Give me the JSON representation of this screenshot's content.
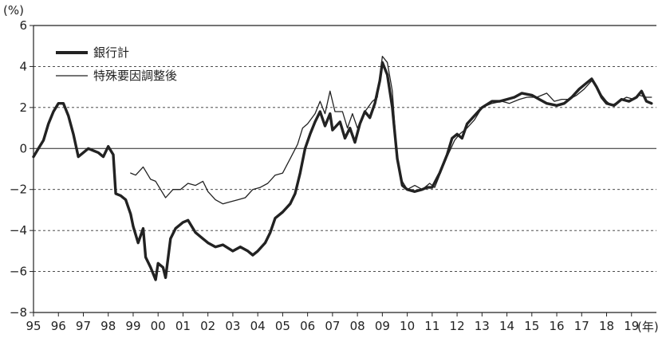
{
  "chart_data": {
    "type": "line",
    "y_unit_label": "(%)",
    "x_unit_label": "(年)",
    "ylim": [
      -8,
      6
    ],
    "y_ticks": [
      6,
      4,
      2,
      0,
      -2,
      -4,
      -6,
      -8
    ],
    "y_tick_labels": [
      "6",
      "4",
      "2",
      "0",
      "−2",
      "−4",
      "−6",
      "−8"
    ],
    "x_ticks": [
      1995,
      1996,
      1997,
      1998,
      1999,
      2000,
      2001,
      2002,
      2003,
      2004,
      2005,
      2006,
      2007,
      2008,
      2009,
      2010,
      2011,
      2012,
      2013,
      2014,
      2015,
      2016,
      2017,
      2018,
      2019
    ],
    "x_tick_labels": [
      "95",
      "96",
      "97",
      "98",
      "99",
      "00",
      "01",
      "02",
      "03",
      "04",
      "05",
      "06",
      "07",
      "08",
      "09",
      "10",
      "11",
      "12",
      "13",
      "14",
      "15",
      "16",
      "17",
      "18",
      "19"
    ],
    "x_range": [
      1995,
      2020.0
    ],
    "grid": "horizontal dashed at 4, 2, -2, -4, -6; solid zero line",
    "legend_position": "top-left",
    "series": [
      {
        "name": "銀行計",
        "style": "thick",
        "points": [
          [
            1995.0,
            -0.4
          ],
          [
            1995.2,
            0.0
          ],
          [
            1995.4,
            0.4
          ],
          [
            1995.6,
            1.2
          ],
          [
            1995.8,
            1.8
          ],
          [
            1996.0,
            2.2
          ],
          [
            1996.2,
            2.2
          ],
          [
            1996.4,
            1.6
          ],
          [
            1996.6,
            0.7
          ],
          [
            1996.8,
            -0.4
          ],
          [
            1997.0,
            -0.2
          ],
          [
            1997.2,
            0.0
          ],
          [
            1997.4,
            -0.1
          ],
          [
            1997.6,
            -0.2
          ],
          [
            1997.8,
            -0.4
          ],
          [
            1998.0,
            0.1
          ],
          [
            1998.2,
            -0.3
          ],
          [
            1998.3,
            -2.2
          ],
          [
            1998.5,
            -2.3
          ],
          [
            1998.7,
            -2.5
          ],
          [
            1998.9,
            -3.2
          ],
          [
            1999.0,
            -3.8
          ],
          [
            1999.2,
            -4.6
          ],
          [
            1999.4,
            -3.9
          ],
          [
            1999.5,
            -5.3
          ],
          [
            1999.7,
            -5.8
          ],
          [
            1999.9,
            -6.4
          ],
          [
            2000.0,
            -5.6
          ],
          [
            2000.2,
            -5.8
          ],
          [
            2000.3,
            -6.3
          ],
          [
            2000.5,
            -4.4
          ],
          [
            2000.7,
            -3.9
          ],
          [
            2001.0,
            -3.6
          ],
          [
            2001.2,
            -3.5
          ],
          [
            2001.5,
            -4.1
          ],
          [
            2001.8,
            -4.4
          ],
          [
            2002.0,
            -4.6
          ],
          [
            2002.3,
            -4.8
          ],
          [
            2002.6,
            -4.7
          ],
          [
            2003.0,
            -5.0
          ],
          [
            2003.3,
            -4.8
          ],
          [
            2003.6,
            -5.0
          ],
          [
            2003.8,
            -5.2
          ],
          [
            2004.0,
            -5.0
          ],
          [
            2004.3,
            -4.6
          ],
          [
            2004.5,
            -4.1
          ],
          [
            2004.7,
            -3.4
          ],
          [
            2005.0,
            -3.1
          ],
          [
            2005.3,
            -2.7
          ],
          [
            2005.5,
            -2.2
          ],
          [
            2005.7,
            -1.2
          ],
          [
            2005.9,
            0.0
          ],
          [
            2006.1,
            0.7
          ],
          [
            2006.3,
            1.3
          ],
          [
            2006.5,
            1.8
          ],
          [
            2006.7,
            1.1
          ],
          [
            2006.9,
            1.7
          ],
          [
            2007.0,
            0.9
          ],
          [
            2007.3,
            1.3
          ],
          [
            2007.5,
            0.5
          ],
          [
            2007.7,
            1.0
          ],
          [
            2007.9,
            0.3
          ],
          [
            2008.1,
            1.2
          ],
          [
            2008.3,
            1.8
          ],
          [
            2008.5,
            1.5
          ],
          [
            2008.7,
            2.2
          ],
          [
            2008.9,
            3.3
          ],
          [
            2009.0,
            4.2
          ],
          [
            2009.2,
            3.6
          ],
          [
            2009.4,
            2.0
          ],
          [
            2009.6,
            -0.5
          ],
          [
            2009.8,
            -1.8
          ],
          [
            2010.0,
            -2.0
          ],
          [
            2010.3,
            -2.1
          ],
          [
            2010.6,
            -2.0
          ],
          [
            2010.8,
            -1.9
          ],
          [
            2011.0,
            -1.9
          ],
          [
            2011.3,
            -1.2
          ],
          [
            2011.6,
            -0.3
          ],
          [
            2011.8,
            0.5
          ],
          [
            2012.0,
            0.7
          ],
          [
            2012.2,
            0.5
          ],
          [
            2012.4,
            1.2
          ],
          [
            2012.7,
            1.6
          ],
          [
            2013.0,
            2.0
          ],
          [
            2013.4,
            2.3
          ],
          [
            2013.7,
            2.3
          ],
          [
            2014.0,
            2.4
          ],
          [
            2014.3,
            2.5
          ],
          [
            2014.6,
            2.7
          ],
          [
            2015.0,
            2.6
          ],
          [
            2015.3,
            2.4
          ],
          [
            2015.6,
            2.2
          ],
          [
            2016.0,
            2.1
          ],
          [
            2016.3,
            2.2
          ],
          [
            2016.6,
            2.5
          ],
          [
            2016.9,
            2.9
          ],
          [
            2017.2,
            3.2
          ],
          [
            2017.4,
            3.4
          ],
          [
            2017.6,
            3.0
          ],
          [
            2017.8,
            2.5
          ],
          [
            2018.0,
            2.2
          ],
          [
            2018.3,
            2.1
          ],
          [
            2018.6,
            2.4
          ],
          [
            2018.9,
            2.3
          ],
          [
            2019.2,
            2.5
          ],
          [
            2019.4,
            2.8
          ],
          [
            2019.6,
            2.3
          ],
          [
            2019.8,
            2.2
          ]
        ]
      },
      {
        "name": "特殊要因調整後",
        "style": "thin",
        "points": [
          [
            1998.9,
            -1.2
          ],
          [
            1999.1,
            -1.3
          ],
          [
            1999.4,
            -0.9
          ],
          [
            1999.7,
            -1.5
          ],
          [
            1999.9,
            -1.6
          ],
          [
            2000.1,
            -2.0
          ],
          [
            2000.3,
            -2.4
          ],
          [
            2000.6,
            -2.0
          ],
          [
            2000.9,
            -2.0
          ],
          [
            2001.2,
            -1.7
          ],
          [
            2001.5,
            -1.8
          ],
          [
            2001.8,
            -1.6
          ],
          [
            2002.0,
            -2.1
          ],
          [
            2002.3,
            -2.5
          ],
          [
            2002.6,
            -2.7
          ],
          [
            2002.9,
            -2.6
          ],
          [
            2003.2,
            -2.5
          ],
          [
            2003.5,
            -2.4
          ],
          [
            2003.8,
            -2.0
          ],
          [
            2004.1,
            -1.9
          ],
          [
            2004.4,
            -1.7
          ],
          [
            2004.7,
            -1.3
          ],
          [
            2005.0,
            -1.2
          ],
          [
            2005.3,
            -0.5
          ],
          [
            2005.6,
            0.2
          ],
          [
            2005.8,
            1.0
          ],
          [
            2006.0,
            1.2
          ],
          [
            2006.3,
            1.7
          ],
          [
            2006.5,
            2.3
          ],
          [
            2006.7,
            1.7
          ],
          [
            2006.9,
            2.8
          ],
          [
            2007.1,
            1.8
          ],
          [
            2007.4,
            1.8
          ],
          [
            2007.6,
            1.0
          ],
          [
            2007.8,
            1.7
          ],
          [
            2008.0,
            1.0
          ],
          [
            2008.3,
            1.8
          ],
          [
            2008.6,
            2.3
          ],
          [
            2008.8,
            2.5
          ],
          [
            2009.0,
            4.5
          ],
          [
            2009.2,
            4.2
          ],
          [
            2009.4,
            2.8
          ],
          [
            2009.6,
            -0.6
          ],
          [
            2009.8,
            -1.6
          ],
          [
            2010.0,
            -2.0
          ],
          [
            2010.3,
            -1.8
          ],
          [
            2010.6,
            -2.0
          ],
          [
            2010.9,
            -1.7
          ],
          [
            2011.1,
            -1.9
          ],
          [
            2011.4,
            -1.0
          ],
          [
            2011.6,
            -0.4
          ],
          [
            2011.9,
            0.4
          ],
          [
            2012.1,
            0.7
          ],
          [
            2012.4,
            1.0
          ],
          [
            2012.7,
            1.4
          ],
          [
            2013.0,
            2.0
          ],
          [
            2013.4,
            2.2
          ],
          [
            2013.8,
            2.3
          ],
          [
            2014.1,
            2.2
          ],
          [
            2014.5,
            2.4
          ],
          [
            2014.8,
            2.5
          ],
          [
            2015.2,
            2.5
          ],
          [
            2015.6,
            2.7
          ],
          [
            2015.9,
            2.3
          ],
          [
            2016.2,
            2.4
          ],
          [
            2016.5,
            2.4
          ],
          [
            2016.8,
            2.6
          ],
          [
            2017.1,
            2.9
          ],
          [
            2017.4,
            3.3
          ],
          [
            2017.6,
            3.0
          ],
          [
            2017.8,
            2.6
          ],
          [
            2018.0,
            2.3
          ],
          [
            2018.2,
            2.1
          ],
          [
            2018.5,
            2.3
          ],
          [
            2018.8,
            2.5
          ],
          [
            2019.1,
            2.4
          ],
          [
            2019.3,
            2.6
          ],
          [
            2019.6,
            2.5
          ],
          [
            2019.8,
            2.5
          ]
        ]
      }
    ]
  }
}
